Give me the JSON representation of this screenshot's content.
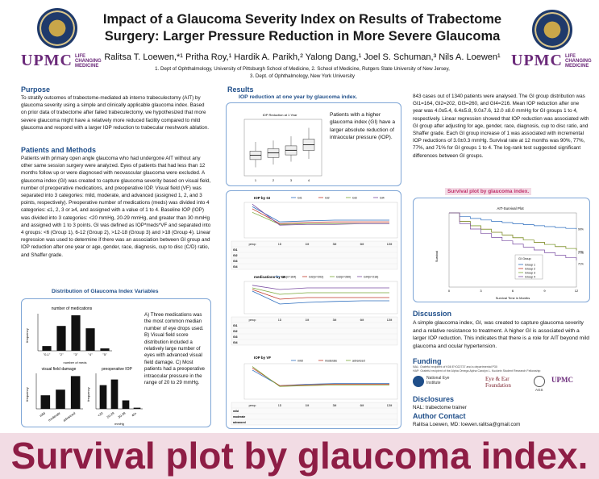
{
  "header": {
    "title_line1": "Impact of a Glaucoma Severity Index on Results of Trabectome",
    "title_line2": "Surgery: Larger Pressure Reduction in More Severe Glaucoma",
    "authors": "Ralitsa T. Loewen,*¹ Pritha Roy,¹ Hardik A. Parikh,² Yalong Dang,¹ Joel S. Schuman,³ Nils A. Loewen¹",
    "affil_line1": "1. Dept of Ophthalmology, University of Pittsburgh School of Medicine, 2. School of Medicine, Rutgers State University of New Jersey,",
    "affil_line2": "3. Dept. of Ophthalmology, New York University",
    "upmc": "UPMC",
    "upmc_tag_1": "LIFE",
    "upmc_tag_2": "CHANGING",
    "upmc_tag_3": "MEDICINE"
  },
  "purpose": {
    "heading": "Purpose",
    "text": "To stratify outcomes of trabectome-mediated ab interno trabeculectomy (AIT) by glaucoma severity using a simple and clinically applicable glaucoma index. Based on prior data of trabectome after failed trabeculectomy, we hypothesized that more severe glaucoma might have a relatively more reduced facility compared to mild glaucoma and respond with a larger IOP reduction to trabecular meshwork ablation."
  },
  "methods": {
    "heading": "Patients and Methods",
    "text": "Patients with primary open angle glaucoma who had undergone AIT without any other same session surgery were analyzed. Eyes of patients that had less than 12 months follow up or were diagnosed with neovascular glaucoma were excluded. A glaucoma index (GI) was created to capture glaucoma severity based on visual field, number of preoperative medications, and preoperative IOP. Visual field (VF) was separated into 3 categories: mild, moderate, and advanced (assigned 1, 2, and 3 points, respectively). Preoperative number of medications (meds) was divided into 4 categories: ≤1, 2, 3 or ≥4, and assigned with a value of 1 to 4. Baseline IOP (IOP) was divided into 3 categories: <20 mmHg, 20-29 mmHg, and greater than 30 mmHg and assigned with 1 to 3 points. GI was defined as IOP*meds*VF and separated into 4 groups: <6 (Group 1), 6-12 (Group 2), >12-18 (Group 3) and >18 (Group 4). Linear regression was used to determine if there was an association between GI group and IOP reduction after one year or age, gender, race, diagnosis, cup to disc (C/D) ratio, and Shaffer grade."
  },
  "distribution": {
    "title": "Distribution of Glaucoma Index Variables",
    "caption": "A) Three medications was the most common median number of eye drops used. B) Visual field score distribution included a relatively large number of eyes with advanced visual field damage. C) Most patients had a preoperative intraocular pressure in the range of 20 to 29 mmHg.",
    "meds_title": "number of medications",
    "meds_x_label": "number of meds",
    "meds_y_label": "frequency",
    "meds_categories": [
      "\"0-1\"",
      "\"2\"",
      "\"3\"",
      "\"4\"",
      "\"5\""
    ],
    "meds_values": [
      40,
      210,
      300,
      190,
      20
    ],
    "meds_ylim": [
      0,
      300
    ],
    "vf_title": "visual field damage",
    "vf_y_label": "frequency",
    "vf_categories": [
      "mild",
      "moderate",
      "advanced"
    ],
    "vf_values": [
      120,
      170,
      290
    ],
    "vf_ylim": [
      0,
      300
    ],
    "iop_title": "preoperative IOP",
    "iop_x_label": "mmHg",
    "iop_y_label": "frequency",
    "iop_categories": [
      "<20",
      "20-29",
      "30-39",
      "40+"
    ],
    "iop_values": [
      420,
      520,
      150,
      20
    ],
    "iop_ylim": [
      0,
      600
    ]
  },
  "results": {
    "heading": "Results",
    "iop_title": "IOP reduction at one year by glaucoma index.",
    "box_plot_title": "IOP Reduction at 1 Year",
    "box_plot_note": "Patients with a higher glaucoma index (GI) have a larger absolute reduction of intraocular pressure (IOP).",
    "box_groups": [
      "1",
      "2",
      "3",
      "4"
    ],
    "box_medians": [
      4.5,
      6.2,
      8.1,
      12.0
    ],
    "box_q1": [
      1.5,
      3.0,
      4.8,
      8.0
    ],
    "box_q3": [
      7.5,
      9.2,
      11.2,
      16.0
    ],
    "box_min": [
      -4,
      -2,
      0,
      2
    ],
    "box_max": [
      14,
      15,
      18,
      24
    ],
    "box_ylim": [
      -10,
      30
    ],
    "gi_chart_title": "IOP by GI",
    "gi_legend": [
      "Gi1",
      "Gi2",
      "Gi3",
      "Gi4"
    ],
    "vf_chart_title": "IOP by VF",
    "vf_legend": [
      "mild",
      "moderate",
      "advanced"
    ],
    "meds_chart_title": "medications by GI",
    "meds_legend": [
      "GI1(n=164)",
      "GI2(n=202)",
      "GI3(n=260)",
      "GI4(n=216)"
    ],
    "time_labels": [
      "preop",
      "1D",
      "1M",
      "3M",
      "6M",
      "12M"
    ],
    "text": "843 cases out of 1340 patients were analysed. The GI group distribution was GI1=164, GI2=202, GI3=260, and GI4=216. Mean IOP reduction after one year was 4.0±5.4, 6.4±5.8, 9.0±7.6, 12.0 ±8.0 mmHg for GI groups 1 to 4, respectively. Linear regression showed that IOP reduction was associated with GI group after adjusting for age, gender, race, diagnosis, cup to disc ratio, and Shaffer grade. Each GI group increase of 1 was associated with incremental IOP reductions of 3.0±0.3 mmHg. Survival rate at 12 months was 90%, 77%, 77%, and 71% for GI groups 1 to 4. The log-rank test suggested significant differences between GI groups."
  },
  "survival": {
    "title": "Survival plot by glaucoma index.",
    "chart_title": "AIT-Survival Plot",
    "x_label": "Survival Time in Months",
    "y_label": "Survival",
    "legend_title": "GI Group",
    "legend": [
      "Group 1",
      "Group 2",
      "Group 3",
      "Group 4"
    ],
    "x_ticks": [
      "0",
      "3",
      "6",
      "9",
      "12"
    ],
    "end_labels": [
      "90%",
      "77%",
      "77%",
      "71%"
    ]
  },
  "discussion": {
    "heading": "Discussion",
    "text": "A simple glaucoma index, GI, was created to capture glaucoma severity and a relative resistance to treatment. A higher GI is associated with a larger IOP reduction. This indicates that there is a role for AIT beyond mild glaucoma and ocular hypertension."
  },
  "funding": {
    "heading": "Funding",
    "small_1": "NAL: Grateful recipient of K08 EY022737 and a departmental P30",
    "small_2": "HAP: Grateful recipient of the Alpha Omega Alpha Carolyn L. Kuckein Student Research Fellowship",
    "nei": "National Eye Institute",
    "eyeear": "Eye & Ear Foundation",
    "ags": "AGS"
  },
  "disclosures": {
    "heading": "Disclosures",
    "text": "NAL: trabectome trainer"
  },
  "contact": {
    "heading": "Author Contact",
    "text": "Ralitsa Loewen, MD: loewen.ralitsa@gmail.com"
  },
  "banner": {
    "text": "Survival plot by glaucoma index."
  }
}
